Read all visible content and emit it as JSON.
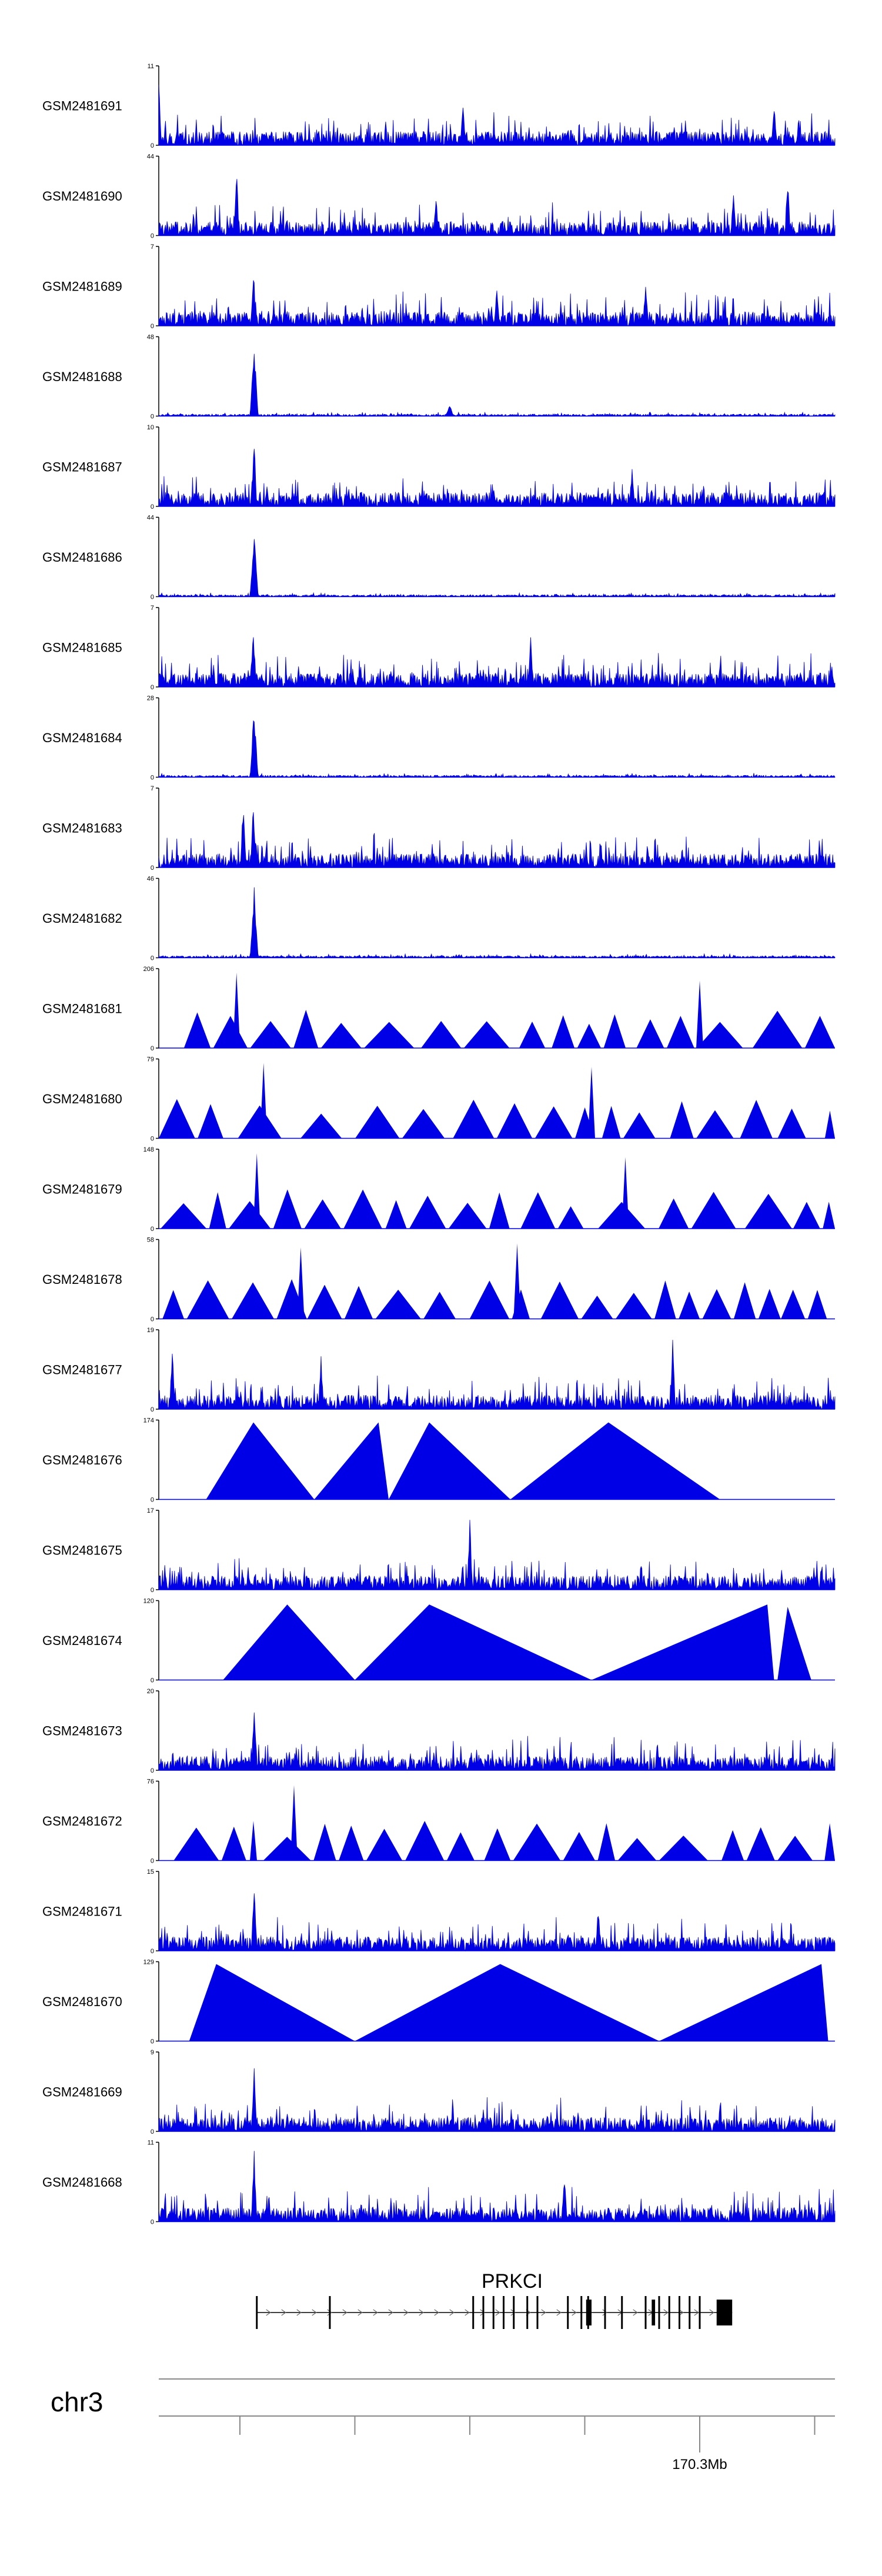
{
  "chart_data": {
    "type": "area",
    "title": "",
    "xlabel": "",
    "ylabel": "",
    "colors": {
      "signal": "#0000e6",
      "axis": "#000000",
      "gene": "#000000",
      "chrom_line": "#888888"
    },
    "tracks": [
      {
        "name": "GSM2481691",
        "ymax": "11",
        "ymin": "0",
        "style": "spiky",
        "peaks": [
          [
            0.0,
            0.85
          ],
          [
            0.45,
            0.6
          ],
          [
            0.91,
            0.55
          ]
        ]
      },
      {
        "name": "GSM2481690",
        "ymax": "44",
        "ymin": "0",
        "style": "spiky",
        "peaks": [
          [
            0.115,
            0.95
          ],
          [
            0.41,
            0.55
          ],
          [
            0.85,
            0.7
          ],
          [
            0.93,
            0.8
          ]
        ]
      },
      {
        "name": "GSM2481689",
        "ymax": "7",
        "ymin": "0",
        "style": "spiky",
        "peaks": [
          [
            0.14,
            0.8
          ],
          [
            0.5,
            0.5
          ],
          [
            0.72,
            0.6
          ]
        ]
      },
      {
        "name": "GSM2481688",
        "ymax": "48",
        "ymin": "0",
        "style": "sharp",
        "peaks": [
          [
            0.141,
            0.95
          ],
          [
            0.43,
            0.15
          ]
        ]
      },
      {
        "name": "GSM2481687",
        "ymax": "10",
        "ymin": "0",
        "style": "spiky",
        "peaks": [
          [
            0.141,
            0.95
          ],
          [
            0.7,
            0.55
          ]
        ]
      },
      {
        "name": "GSM2481686",
        "ymax": "44",
        "ymin": "0",
        "style": "sharp",
        "peaks": [
          [
            0.141,
            0.9
          ]
        ]
      },
      {
        "name": "GSM2481685",
        "ymax": "7",
        "ymin": "0",
        "style": "spiky",
        "peaks": [
          [
            0.14,
            0.8
          ],
          [
            0.55,
            0.65
          ]
        ]
      },
      {
        "name": "GSM2481684",
        "ymax": "28",
        "ymin": "0",
        "style": "sharp",
        "peaks": [
          [
            0.141,
            0.95
          ]
        ]
      },
      {
        "name": "GSM2481683",
        "ymax": "7",
        "ymin": "0",
        "style": "spiky",
        "peaks": [
          [
            0.125,
            0.95
          ],
          [
            0.14,
            0.9
          ]
        ]
      },
      {
        "name": "GSM2481682",
        "ymax": "46",
        "ymin": "0",
        "style": "sharp",
        "peaks": [
          [
            0.141,
            0.95
          ]
        ]
      },
      {
        "name": "GSM2481681",
        "ymax": "206",
        "ymin": "0",
        "style": "sparse",
        "peaks": [
          [
            0.115,
            0.95
          ],
          [
            0.8,
            0.85
          ]
        ]
      },
      {
        "name": "GSM2481680",
        "ymax": "79",
        "ymin": "0",
        "style": "sparse",
        "peaks": [
          [
            0.155,
            0.95
          ],
          [
            0.64,
            0.9
          ]
        ]
      },
      {
        "name": "GSM2481679",
        "ymax": "148",
        "ymin": "0",
        "style": "sparse",
        "peaks": [
          [
            0.145,
            0.95
          ],
          [
            0.69,
            0.9
          ]
        ]
      },
      {
        "name": "GSM2481678",
        "ymax": "58",
        "ymin": "0",
        "style": "sparse",
        "peaks": [
          [
            0.21,
            0.9
          ],
          [
            0.53,
            0.95
          ]
        ]
      },
      {
        "name": "GSM2481677",
        "ymax": "19",
        "ymin": "0",
        "style": "spiky",
        "peaks": [
          [
            0.02,
            0.85
          ],
          [
            0.24,
            0.7
          ],
          [
            0.76,
            0.9
          ]
        ]
      },
      {
        "name": "GSM2481676",
        "ymax": "174",
        "ymin": "0",
        "style": "triangles",
        "peaks": []
      },
      {
        "name": "GSM2481675",
        "ymax": "17",
        "ymin": "0",
        "style": "spiky",
        "peaks": [
          [
            0.46,
            0.95
          ]
        ]
      },
      {
        "name": "GSM2481674",
        "ymax": "120",
        "ymin": "0",
        "style": "triangles",
        "peaks": []
      },
      {
        "name": "GSM2481673",
        "ymax": "20",
        "ymin": "0",
        "style": "spiky",
        "peaks": [
          [
            0.141,
            0.95
          ]
        ]
      },
      {
        "name": "GSM2481672",
        "ymax": "76",
        "ymin": "0",
        "style": "sparse",
        "peaks": [
          [
            0.2,
            0.95
          ],
          [
            0.14,
            0.5
          ]
        ]
      },
      {
        "name": "GSM2481671",
        "ymax": "15",
        "ymin": "0",
        "style": "spiky",
        "peaks": [
          [
            0.141,
            0.95
          ],
          [
            0.65,
            0.6
          ]
        ]
      },
      {
        "name": "GSM2481670",
        "ymax": "129",
        "ymin": "0",
        "style": "triangles",
        "peaks": []
      },
      {
        "name": "GSM2481669",
        "ymax": "9",
        "ymin": "0",
        "style": "spiky",
        "peaks": [
          [
            0.141,
            0.95
          ]
        ]
      },
      {
        "name": "GSM2481668",
        "ymax": "11",
        "ymin": "0",
        "style": "spiky",
        "peaks": [
          [
            0.141,
            0.95
          ],
          [
            0.6,
            0.6
          ]
        ]
      }
    ],
    "triangle_tracks": {
      "GSM2481676": [
        [
          0.07,
          0.14,
          0.23,
          1.0
        ],
        [
          0.23,
          0.325,
          0.34,
          1.0
        ],
        [
          0.34,
          0.4,
          0.52,
          1.0
        ],
        [
          0.52,
          0.665,
          0.83,
          1.0
        ]
      ],
      "GSM2481674": [
        [
          0.095,
          0.19,
          0.29,
          0.98
        ],
        [
          0.29,
          0.4,
          0.64,
          0.98
        ],
        [
          0.64,
          0.9,
          0.91,
          0.98
        ],
        [
          0.915,
          0.93,
          0.965,
          0.95
        ]
      ],
      "GSM2481670": [
        [
          0.045,
          0.085,
          0.29,
          1.0
        ],
        [
          0.29,
          0.505,
          0.74,
          1.0
        ],
        [
          0.74,
          0.98,
          0.99,
          1.0
        ]
      ]
    },
    "gene": {
      "name": "PRKCI",
      "start": 0.145,
      "end": 0.848,
      "exons": [
        0.145,
        0.253,
        0.465,
        0.48,
        0.495,
        0.51,
        0.525,
        0.545,
        0.56,
        0.605,
        0.625,
        0.635,
        0.66,
        0.685,
        0.72,
        0.74,
        0.755,
        0.77,
        0.785,
        0.8
      ],
      "thick_exons": [
        [
          0.632,
          0.64
        ],
        [
          0.729,
          0.734
        ],
        [
          0.825,
          0.848
        ]
      ]
    },
    "axis": {
      "chromosome": "chr3",
      "tick_positions": [
        0.12,
        0.29,
        0.46,
        0.63,
        0.8,
        0.97
      ],
      "labeled_tick": {
        "position": 0.8,
        "label": "170.3Mb"
      }
    }
  }
}
